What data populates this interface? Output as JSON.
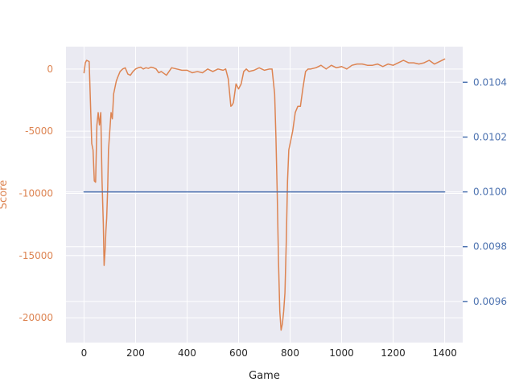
{
  "chart_data": {
    "type": "line",
    "title": "",
    "xlabel": "Game",
    "ylabel_left": "Score",
    "ylabel_right": "",
    "xlim": [
      -70,
      1470
    ],
    "xticks": [
      0,
      200,
      400,
      600,
      800,
      1000,
      1200,
      1400
    ],
    "ylim_left": [
      -22000,
      1800
    ],
    "yticks_left": [
      0,
      -5000,
      -10000,
      -15000,
      -20000
    ],
    "ylim_right": [
      0.00945,
      0.01053
    ],
    "yticks_right": [
      0.0096,
      0.0098,
      0.01,
      0.0102,
      0.0104
    ],
    "yticks_right_labels": [
      "0.0096",
      "0.0098",
      "0.0100",
      "0.0102",
      "0.0104"
    ],
    "grid": true,
    "colors": {
      "background": "#eaeaf2",
      "grid": "#ffffff",
      "score": "#dd8452",
      "epsilon": "#4c72b0",
      "axis_text": "#262626"
    },
    "series": [
      {
        "name": "",
        "axis": "left",
        "color": "#dd8452",
        "x": [
          0,
          5,
          10,
          20,
          30,
          35,
          40,
          45,
          50,
          55,
          60,
          65,
          70,
          75,
          78,
          82,
          85,
          88,
          92,
          95,
          100,
          105,
          110,
          115,
          120,
          125,
          130,
          140,
          150,
          160,
          170,
          180,
          190,
          200,
          210,
          220,
          230,
          240,
          250,
          260,
          270,
          280,
          290,
          300,
          320,
          340,
          360,
          380,
          400,
          420,
          440,
          460,
          480,
          500,
          520,
          540,
          550,
          560,
          570,
          575,
          580,
          590,
          600,
          610,
          620,
          630,
          640,
          660,
          680,
          700,
          720,
          730,
          740,
          745,
          750,
          755,
          760,
          765,
          770,
          775,
          780,
          785,
          790,
          795,
          800,
          810,
          820,
          830,
          840,
          850,
          860,
          870,
          880,
          900,
          920,
          940,
          960,
          980,
          1000,
          1020,
          1040,
          1060,
          1080,
          1100,
          1120,
          1140,
          1160,
          1180,
          1200,
          1220,
          1240,
          1260,
          1280,
          1300,
          1320,
          1340,
          1360,
          1380,
          1400
        ],
        "values": [
          -300,
          500,
          700,
          600,
          -6000,
          -6500,
          -9000,
          -9100,
          -4500,
          -3500,
          -4500,
          -3500,
          -9000,
          -12500,
          -15800,
          -14500,
          -13000,
          -12000,
          -9500,
          -6500,
          -5000,
          -3500,
          -4000,
          -2000,
          -1500,
          -1000,
          -700,
          -200,
          0,
          100,
          -400,
          -500,
          -200,
          0,
          100,
          150,
          0,
          100,
          50,
          150,
          100,
          0,
          -300,
          -200,
          -500,
          100,
          0,
          -100,
          -100,
          -300,
          -200,
          -300,
          0,
          -200,
          0,
          -100,
          0,
          -800,
          -3000,
          -2900,
          -2700,
          -1200,
          -1600,
          -1200,
          -200,
          0,
          -200,
          -100,
          100,
          -100,
          0,
          0,
          -2000,
          -5500,
          -10000,
          -15500,
          -19500,
          -21000,
          -20500,
          -19500,
          -18000,
          -14000,
          -9000,
          -6500,
          -6000,
          -5000,
          -3500,
          -3000,
          -3000,
          -1500,
          -200,
          0,
          0,
          100,
          300,
          0,
          300,
          100,
          200,
          0,
          300,
          400,
          400,
          300,
          300,
          400,
          200,
          400,
          300,
          500,
          700,
          500,
          500,
          400,
          500,
          700,
          400,
          600,
          800
        ]
      },
      {
        "name": "",
        "axis": "right",
        "color": "#4c72b0",
        "x": [
          0,
          1400
        ],
        "values": [
          0.01,
          0.01
        ]
      }
    ]
  }
}
